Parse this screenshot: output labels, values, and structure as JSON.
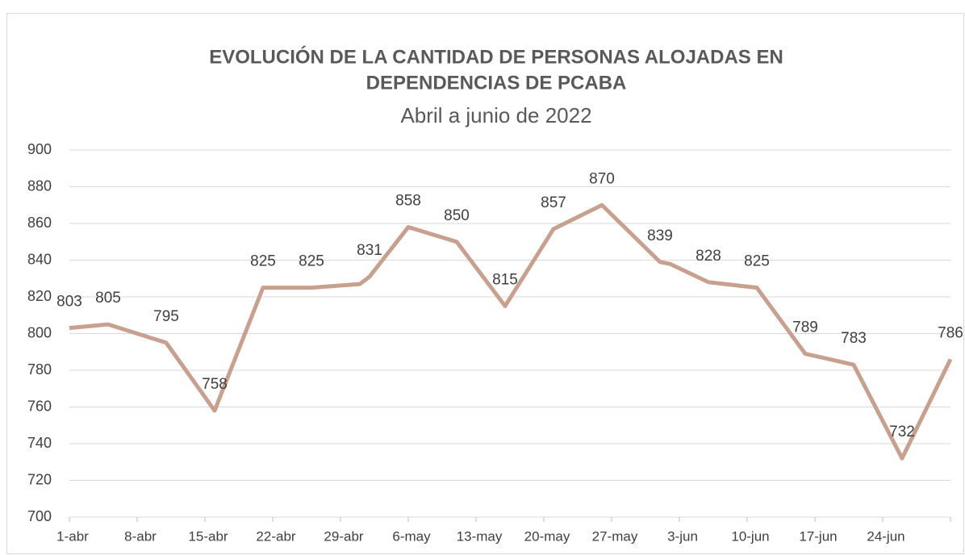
{
  "chart_data": {
    "type": "line",
    "title": [
      "EVOLUCIÓN DE LA CANTIDAD DE PERSONAS ALOJADAS EN",
      "DEPENDENCIAS DE PCABA"
    ],
    "subtitle": "Abril a junio de 2022",
    "x": [
      0,
      4,
      10,
      15,
      20,
      25,
      30,
      31,
      35,
      40,
      45,
      50,
      55,
      61,
      62,
      66,
      71,
      76,
      81,
      86,
      91
    ],
    "series": [
      {
        "name": "Personas alojadas",
        "color": "#c8a08f",
        "values": [
          803,
          805,
          795,
          758,
          825,
          825,
          827,
          831,
          858,
          850,
          815,
          857,
          870,
          839,
          838,
          828,
          825,
          789,
          783,
          732,
          786
        ],
        "value_labels": [
          "803",
          "805",
          "795",
          "758",
          "825",
          "825",
          null,
          "831",
          "858",
          "850",
          "815",
          "857",
          "870",
          "839",
          null,
          "828",
          "825",
          "789",
          "783",
          "732",
          "786"
        ]
      }
    ],
    "xlim": [
      0,
      91
    ],
    "xticks": [
      {
        "value": 0,
        "label": "1-abr"
      },
      {
        "value": 7,
        "label": "8-abr"
      },
      {
        "value": 14,
        "label": "15-abr"
      },
      {
        "value": 21,
        "label": "22-abr"
      },
      {
        "value": 28,
        "label": "29-abr"
      },
      {
        "value": 35,
        "label": "6-may"
      },
      {
        "value": 42,
        "label": "13-may"
      },
      {
        "value": 49,
        "label": "20-may"
      },
      {
        "value": 56,
        "label": "27-may"
      },
      {
        "value": 63,
        "label": "3-jun"
      },
      {
        "value": 70,
        "label": "10-jun"
      },
      {
        "value": 77,
        "label": "17-jun"
      },
      {
        "value": 84,
        "label": "24-jun"
      }
    ],
    "ylim": [
      700,
      900
    ],
    "yticks": [
      700,
      720,
      740,
      760,
      780,
      800,
      820,
      840,
      860,
      880,
      900
    ],
    "grid": true
  }
}
